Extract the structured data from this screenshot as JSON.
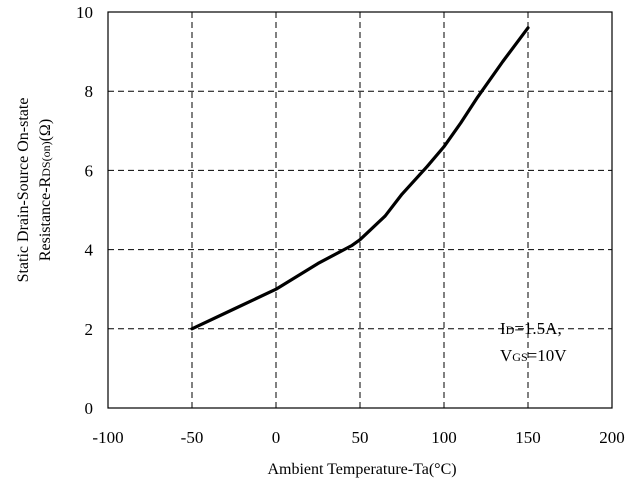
{
  "chart_data": {
    "type": "line",
    "xlabel": "Ambient Temperature-Ta(°C)",
    "ylabel_line1": "Static Drain-Source On-state",
    "ylabel_line2": {
      "main": "Resistance-R",
      "sub": "DS(on)",
      "tail": "(Ω)"
    },
    "xlim": [
      -100,
      200
    ],
    "ylim": [
      0,
      10
    ],
    "x_ticks": [
      "-100",
      "-50",
      "0",
      "50",
      "100",
      "150",
      "200"
    ],
    "y_ticks": [
      "0",
      "2",
      "4",
      "6",
      "8",
      "10"
    ],
    "grid": true,
    "conditions": [
      {
        "main": "I",
        "sub": "D",
        "tail": "=1.5A,"
      },
      {
        "main": "V",
        "sub": "GS",
        "tail": "=10V"
      }
    ],
    "series": [
      {
        "x": [
          -50,
          -25,
          0,
          25,
          45,
          50,
          55,
          65,
          75,
          90,
          100,
          110,
          120,
          135,
          150
        ],
        "y": [
          2.0,
          2.5,
          3.0,
          3.65,
          4.1,
          4.25,
          4.45,
          4.85,
          5.4,
          6.1,
          6.6,
          7.2,
          7.85,
          8.75,
          9.6
        ]
      }
    ]
  }
}
